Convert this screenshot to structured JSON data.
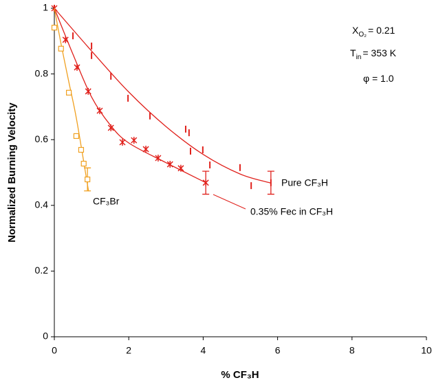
{
  "chart_data": {
    "type": "scatter",
    "xlabel": "% CF₃H",
    "ylabel": "Normalized Burning Velocity",
    "xlim": [
      0,
      10
    ],
    "ylim": [
      0,
      1
    ],
    "xticks": [
      0,
      2,
      4,
      6,
      8,
      10
    ],
    "yticks": [
      0,
      0.2,
      0.4,
      0.6,
      0.8,
      1
    ],
    "grid": false,
    "annotations": [
      {
        "base": "X",
        "sub": "O₂",
        "rest": "= 0.21"
      },
      {
        "base": "T",
        "sub": "in",
        "rest": "= 353 K"
      },
      {
        "base": "φ = 1.0",
        "sub": null,
        "rest": null
      }
    ],
    "series": [
      {
        "name": "Pure CF₃H",
        "color": "#e0201b",
        "marker": "bar",
        "x": [
          0,
          0.5,
          1.0,
          1.0,
          1.52,
          1.98,
          2.57,
          3.53,
          3.62,
          3.66,
          3.99,
          4.18,
          4.99,
          5.29,
          5.82
        ],
        "values": [
          1,
          0.916,
          0.885,
          0.856,
          0.793,
          0.726,
          0.672,
          0.632,
          0.621,
          0.565,
          0.569,
          0.523,
          0.515,
          0.46,
          0.469
        ],
        "errors": [
          null,
          null,
          null,
          null,
          null,
          null,
          null,
          null,
          null,
          null,
          null,
          null,
          null,
          null,
          0.035
        ],
        "curve": {
          "x": [
            0,
            1,
            2,
            3,
            4,
            5,
            5.82
          ],
          "y": [
            1,
            0.87,
            0.745,
            0.64,
            0.555,
            0.495,
            0.468
          ]
        }
      },
      {
        "name": "0.35% Fec in CF₃H",
        "color": "#e0201b",
        "marker": "asterisk",
        "x": [
          0,
          0.3,
          0.61,
          0.91,
          1.22,
          1.52,
          1.83,
          2.14,
          2.46,
          2.79,
          3.11,
          3.4,
          4.07
        ],
        "values": [
          1,
          0.904,
          0.82,
          0.747,
          0.688,
          0.636,
          0.592,
          0.598,
          0.571,
          0.544,
          0.525,
          0.513,
          0.469
        ],
        "errors": [
          null,
          null,
          null,
          null,
          null,
          null,
          null,
          null,
          null,
          null,
          null,
          null,
          0.035
        ],
        "curve": {
          "x": [
            0,
            0.5,
            1,
            1.5,
            2,
            3,
            4.07
          ],
          "y": [
            1,
            0.86,
            0.73,
            0.645,
            0.59,
            0.53,
            0.469
          ]
        }
      },
      {
        "name": "CF₃Br",
        "color": "#f0a020",
        "marker": "square",
        "x": [
          0,
          0.18,
          0.39,
          0.59,
          0.72,
          0.79,
          0.89
        ],
        "values": [
          0.941,
          0.877,
          0.743,
          0.611,
          0.569,
          0.527,
          0.479
        ],
        "errors": [
          null,
          null,
          null,
          null,
          null,
          null,
          0.035
        ],
        "curve": {
          "x": [
            0,
            0.2,
            0.4,
            0.6,
            0.92
          ],
          "y": [
            1,
            0.88,
            0.77,
            0.66,
            0.443
          ]
        }
      }
    ]
  }
}
